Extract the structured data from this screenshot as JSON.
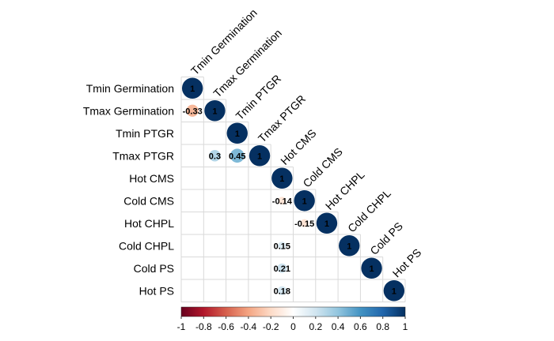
{
  "chart_data": {
    "type": "heatmap",
    "subtype": "correlation-matrix-lower-triangle",
    "variables": [
      "Tmin Germination",
      "Tmax Germination",
      "Tmin PTGR",
      "Tmax PTGR",
      "Hot CMS",
      "Cold CMS",
      "Hot CHPL",
      "Cold CHPL",
      "Cold PS",
      "Hot PS"
    ],
    "cells": [
      {
        "row": 0,
        "col": 0,
        "value": 1,
        "label": "1"
      },
      {
        "row": 1,
        "col": 0,
        "value": -0.33,
        "label": "-0.33"
      },
      {
        "row": 1,
        "col": 1,
        "value": 1,
        "label": "1"
      },
      {
        "row": 2,
        "col": 2,
        "value": 1,
        "label": "1"
      },
      {
        "row": 3,
        "col": 1,
        "value": 0.3,
        "label": "0.3"
      },
      {
        "row": 3,
        "col": 2,
        "value": 0.45,
        "label": "0.45"
      },
      {
        "row": 3,
        "col": 3,
        "value": 1,
        "label": "1"
      },
      {
        "row": 4,
        "col": 4,
        "value": 1,
        "label": "1"
      },
      {
        "row": 5,
        "col": 4,
        "value": -0.14,
        "label": "-0.14"
      },
      {
        "row": 5,
        "col": 5,
        "value": 1,
        "label": "1"
      },
      {
        "row": 6,
        "col": 5,
        "value": -0.15,
        "label": "-0.15"
      },
      {
        "row": 6,
        "col": 6,
        "value": 1,
        "label": "1"
      },
      {
        "row": 7,
        "col": 4,
        "value": 0.15,
        "label": "0.15"
      },
      {
        "row": 7,
        "col": 7,
        "value": 1,
        "label": "1"
      },
      {
        "row": 8,
        "col": 4,
        "value": 0.21,
        "label": "0.21"
      },
      {
        "row": 8,
        "col": 8,
        "value": 1,
        "label": "1"
      },
      {
        "row": 9,
        "col": 4,
        "value": 0.18,
        "label": "0.18"
      },
      {
        "row": 9,
        "col": 9,
        "value": 1,
        "label": "1"
      }
    ],
    "colorbar": {
      "range": [
        -1,
        1
      ],
      "ticks": [
        "-1",
        "-0.8",
        "-0.6",
        "-0.4",
        "-0.2",
        "0",
        "0.2",
        "0.4",
        "0.6",
        "0.8",
        "1"
      ],
      "colors": [
        "#67001F",
        "#B2182B",
        "#D6604D",
        "#F4A582",
        "#FDDBC7",
        "#FFFFFF",
        "#D1E5F0",
        "#92C5DE",
        "#4393C3",
        "#2166AC",
        "#053061"
      ]
    }
  }
}
